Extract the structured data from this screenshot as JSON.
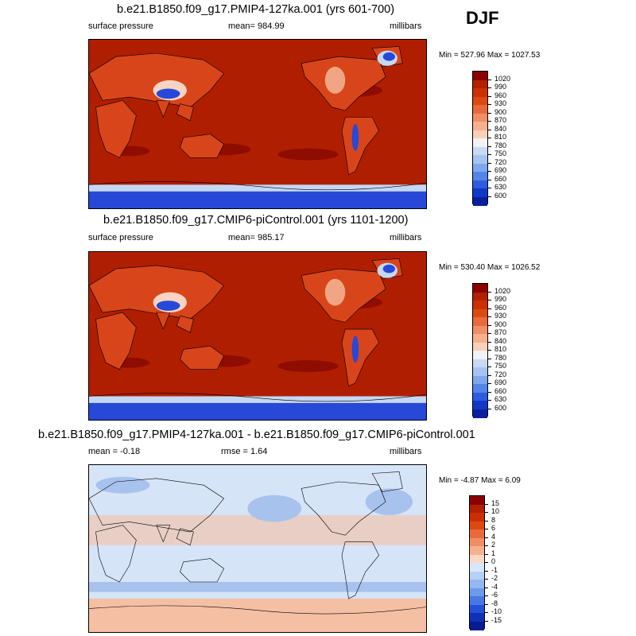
{
  "season": "DJF",
  "panels": [
    {
      "title": "b.e21.B1850.f09_g17.PMIP4-127ka.001 (yrs 601-700)",
      "left_label": "surface pressure",
      "center_label": "mean= 984.99",
      "right_label": "millibars",
      "minmax": "Min = 527.96 Max = 1027.53",
      "field_type": "absolute"
    },
    {
      "title": "b.e21.B1850.f09_g17.CMIP6-piControl.001 (yrs 1101-1200)",
      "left_label": "surface pressure",
      "center_label": "mean= 985.17",
      "right_label": "millibars",
      "minmax": "Min = 530.40 Max = 1026.52",
      "field_type": "absolute"
    },
    {
      "title": "b.e21.B1850.f09_g17.PMIP4-127ka.001 - b.e21.B1850.f09_g17.CMIP6-piControl.001",
      "left_label": "mean =  -0.18",
      "center_label": "rmse =   1.64",
      "right_label": "millibars",
      "minmax": "Min =  -4.87 Max =   6.09",
      "field_type": "difference"
    }
  ],
  "colorbars": {
    "absolute": {
      "labels": [
        "1020",
        "990",
        "960",
        "930",
        "900",
        "870",
        "840",
        "810",
        "780",
        "750",
        "720",
        "690",
        "660",
        "630",
        "600"
      ],
      "colors": [
        "#8b0000",
        "#b22000",
        "#cc3000",
        "#dd4a10",
        "#e86a3c",
        "#f08e66",
        "#f6b08e",
        "#fad0b8",
        "#f2f2f2",
        "#c8daf6",
        "#a6c4f2",
        "#7ea8ee",
        "#5584e8",
        "#2e5ce0",
        "#1238c8",
        "#0a1e9e"
      ]
    },
    "difference": {
      "labels": [
        "15",
        "10",
        "8",
        "6",
        "4",
        "2",
        "1",
        "0",
        "-1",
        "-2",
        "-4",
        "-6",
        "-8",
        "-10",
        "-15"
      ],
      "colors": [
        "#8b0000",
        "#b22000",
        "#cc3000",
        "#dd4a10",
        "#e86a3c",
        "#f08e66",
        "#f6b08e",
        "#fad8c6",
        "#d8e6fa",
        "#b8d0f6",
        "#96b8f0",
        "#6e9aea",
        "#4878e4",
        "#2450d8",
        "#1030b8",
        "#0a1a90"
      ]
    },
    "palette": {
      "ocean_high": "#b01e00",
      "ocean_deep_high": "#8e0c00",
      "land_mid": "#d8451a",
      "land_light": "#f0a684",
      "land_pale": "#f8d4c2",
      "low_blue": "#2848d8",
      "low_light": "#c4d8f4",
      "diff_neutral": "#d6e4f8",
      "diff_pos": "#f5bfa4",
      "diff_neg": "#a8c2ee"
    }
  }
}
